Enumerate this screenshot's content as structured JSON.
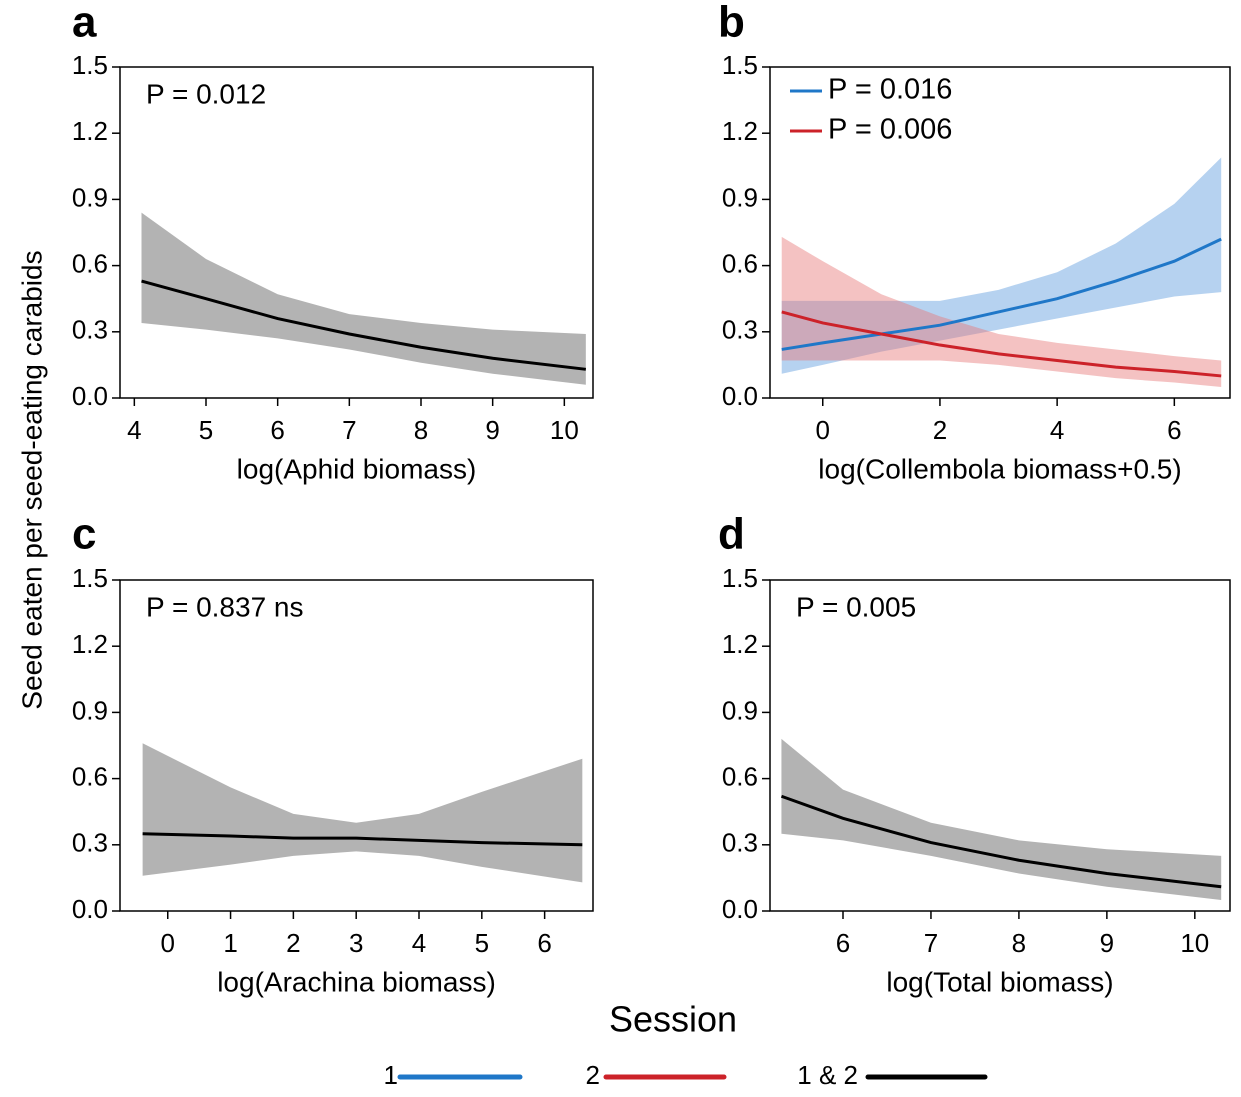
{
  "y_label": "Seed eaten per seed-eating carabids",
  "legend": {
    "title": "Session",
    "entries": [
      {
        "name": "1",
        "color": "#1f77c8"
      },
      {
        "name": "2",
        "color": "#cc2229"
      },
      {
        "name": "1 & 2",
        "color": "#000000"
      }
    ]
  },
  "chart_data": [
    {
      "type": "line",
      "panel": "a",
      "x_label": "log(Aphid biomass)",
      "annotation": "P = 0.012",
      "xlim": [
        3.8,
        10.4
      ],
      "ylim": [
        0,
        1.5
      ],
      "xticks": [
        4,
        5,
        6,
        7,
        8,
        9,
        10
      ],
      "yticks": [
        {
          "value": 0,
          "label": "0.0"
        },
        0.3,
        0.6,
        0.9,
        1.2,
        1.5
      ],
      "series": [
        {
          "color": "#000000",
          "band_color": "#b3b3b3",
          "x": [
            4.1,
            5,
            6,
            7,
            8,
            9,
            10.3
          ],
          "values": [
            0.53,
            0.45,
            0.36,
            0.29,
            0.23,
            0.18,
            0.13
          ],
          "lower": [
            0.34,
            0.31,
            0.27,
            0.22,
            0.16,
            0.11,
            0.06
          ],
          "upper": [
            0.84,
            0.63,
            0.47,
            0.38,
            0.34,
            0.31,
            0.29
          ]
        }
      ]
    },
    {
      "type": "line",
      "panel": "b",
      "x_label": "log(Collembola biomass+0.5)",
      "xlim": [
        -0.9,
        6.95
      ],
      "ylim": [
        0,
        1.5
      ],
      "xticks": [
        0,
        2,
        4,
        6
      ],
      "yticks": [
        {
          "value": 0,
          "label": "0.0"
        },
        0.3,
        0.6,
        0.9,
        1.2,
        1.5
      ],
      "series": [
        {
          "name": "P = 0.016",
          "color": "#1f77c8",
          "band_color": "rgba(110,165,225,0.5)",
          "x": [
            -0.7,
            0,
            1,
            2,
            3,
            4,
            5,
            6,
            6.8
          ],
          "values": [
            0.22,
            0.25,
            0.29,
            0.33,
            0.39,
            0.45,
            0.53,
            0.62,
            0.72
          ],
          "lower": [
            0.11,
            0.15,
            0.21,
            0.26,
            0.31,
            0.36,
            0.41,
            0.46,
            0.48
          ],
          "upper": [
            0.44,
            0.44,
            0.44,
            0.44,
            0.49,
            0.57,
            0.7,
            0.88,
            1.09
          ]
        },
        {
          "name": "P = 0.006",
          "color": "#cc2229",
          "band_color": "rgba(230,120,120,0.45)",
          "x": [
            -0.7,
            0,
            1,
            2,
            3,
            4,
            5,
            6,
            6.8
          ],
          "values": [
            0.39,
            0.34,
            0.29,
            0.24,
            0.2,
            0.17,
            0.14,
            0.12,
            0.1
          ],
          "lower": [
            0.17,
            0.17,
            0.17,
            0.17,
            0.15,
            0.12,
            0.09,
            0.07,
            0.05
          ],
          "upper": [
            0.73,
            0.62,
            0.47,
            0.37,
            0.29,
            0.25,
            0.22,
            0.19,
            0.17
          ]
        }
      ]
    },
    {
      "type": "line",
      "panel": "c",
      "x_label": "log(Arachina biomass)",
      "annotation": "P = 0.837 ns",
      "xlim": [
        -0.76,
        6.77
      ],
      "ylim": [
        0,
        1.5
      ],
      "xticks": [
        0,
        1,
        2,
        3,
        4,
        5,
        6
      ],
      "yticks": [
        {
          "value": 0,
          "label": "0.0"
        },
        0.3,
        0.6,
        0.9,
        1.2,
        1.5
      ],
      "series": [
        {
          "color": "#000000",
          "band_color": "#b3b3b3",
          "x": [
            -0.4,
            1,
            2,
            3,
            4,
            5,
            6.6
          ],
          "values": [
            0.35,
            0.34,
            0.33,
            0.33,
            0.32,
            0.31,
            0.3
          ],
          "lower": [
            0.16,
            0.21,
            0.25,
            0.27,
            0.25,
            0.2,
            0.13
          ],
          "upper": [
            0.76,
            0.56,
            0.44,
            0.4,
            0.44,
            0.54,
            0.69
          ]
        }
      ]
    },
    {
      "type": "line",
      "panel": "d",
      "x_label": "log(Total biomass)",
      "annotation": "P = 0.005",
      "xlim": [
        5.17,
        10.4
      ],
      "ylim": [
        0,
        1.5
      ],
      "xticks": [
        6,
        7,
        8,
        9,
        10
      ],
      "yticks": [
        {
          "value": 0,
          "label": "0.0"
        },
        0.3,
        0.6,
        0.9,
        1.2,
        1.5
      ],
      "series": [
        {
          "color": "#000000",
          "band_color": "#b3b3b3",
          "x": [
            5.3,
            6,
            7,
            8,
            9,
            10.3
          ],
          "values": [
            0.52,
            0.42,
            0.31,
            0.23,
            0.17,
            0.11
          ],
          "lower": [
            0.35,
            0.32,
            0.25,
            0.17,
            0.11,
            0.05
          ],
          "upper": [
            0.78,
            0.55,
            0.4,
            0.32,
            0.28,
            0.25
          ]
        }
      ]
    }
  ]
}
